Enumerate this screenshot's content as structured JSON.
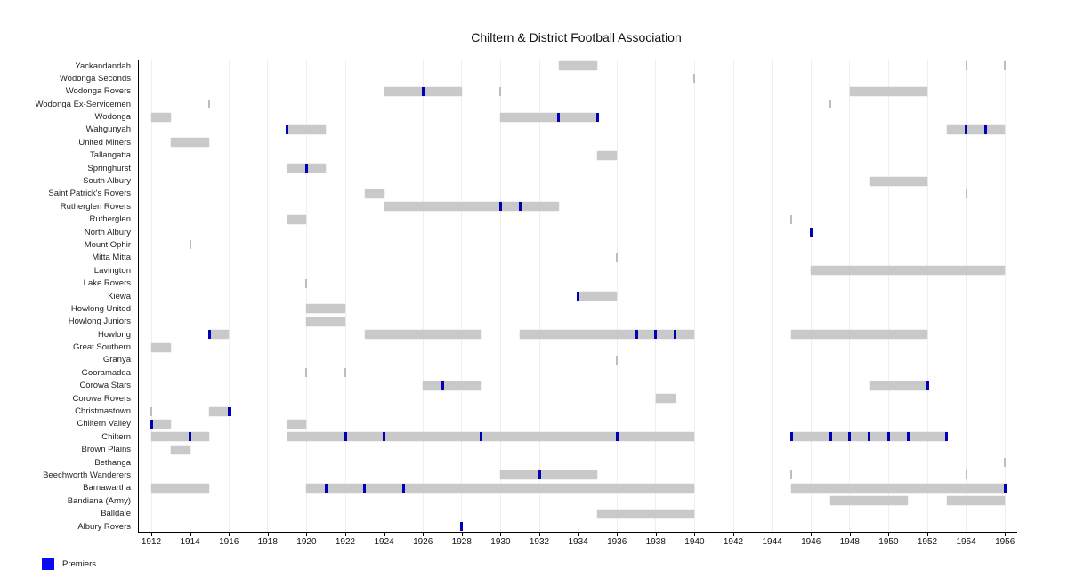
{
  "chart_data": {
    "type": "bar",
    "variant": "horizontal-timeline-gantt",
    "title": "Chiltern & District Football Association",
    "xlabel": "",
    "ylabel": "",
    "x_axis": {
      "min": 1912,
      "max": 1956,
      "tick_step": 2,
      "tick_labels": [
        "1912",
        "1914",
        "1916",
        "1918",
        "1920",
        "1922",
        "1924",
        "1926",
        "1928",
        "1930",
        "1932",
        "1934",
        "1936",
        "1938",
        "1940",
        "1942",
        "1944",
        "1946",
        "1948",
        "1950",
        "1952",
        "1954",
        "1956"
      ]
    },
    "grid": true,
    "legend": {
      "label": "Premiers",
      "position": "bottom-left"
    },
    "colors": {
      "bar": "#c9c9c9",
      "short_stint_tick": "#bdbdbd",
      "premier": "#0000b4",
      "legend_swatch": "#0a0af5",
      "grid": "#efefef",
      "axis": "#000000"
    },
    "clubs": [
      {
        "name": "Yackandandah",
        "bars": [
          [
            1933,
            1935
          ]
        ],
        "premiers": [],
        "ticks": [
          1954,
          1956
        ]
      },
      {
        "name": "Wodonga Seconds",
        "bars": [],
        "premiers": [],
        "ticks": [
          1940
        ]
      },
      {
        "name": "Wodonga Rovers",
        "bars": [
          [
            1924,
            1928
          ],
          [
            1948,
            1952
          ]
        ],
        "premiers": [
          1926
        ],
        "ticks": [
          1930
        ]
      },
      {
        "name": "Wodonga Ex-Servicemen",
        "bars": [],
        "premiers": [],
        "ticks": [
          1915,
          1947
        ]
      },
      {
        "name": "Wodonga",
        "bars": [
          [
            1912,
            1913
          ],
          [
            1930,
            1935
          ]
        ],
        "premiers": [
          1933,
          1935
        ],
        "ticks": []
      },
      {
        "name": "Wahgunyah",
        "bars": [
          [
            1919,
            1921
          ],
          [
            1953,
            1956
          ]
        ],
        "premiers": [
          1919,
          1954,
          1955
        ],
        "ticks": []
      },
      {
        "name": "United Miners",
        "bars": [
          [
            1913,
            1915
          ]
        ],
        "premiers": [],
        "ticks": []
      },
      {
        "name": "Tallangatta",
        "bars": [
          [
            1935,
            1936
          ]
        ],
        "premiers": [],
        "ticks": []
      },
      {
        "name": "Springhurst",
        "bars": [
          [
            1919,
            1921
          ]
        ],
        "premiers": [
          1920
        ],
        "ticks": []
      },
      {
        "name": "South Albury",
        "bars": [
          [
            1949,
            1952
          ]
        ],
        "premiers": [],
        "ticks": []
      },
      {
        "name": "Saint Patrick's Rovers",
        "bars": [
          [
            1923,
            1924
          ]
        ],
        "premiers": [],
        "ticks": [
          1954
        ]
      },
      {
        "name": "Rutherglen Rovers",
        "bars": [
          [
            1924,
            1933
          ]
        ],
        "premiers": [
          1930,
          1931
        ],
        "ticks": []
      },
      {
        "name": "Rutherglen",
        "bars": [
          [
            1919,
            1920
          ]
        ],
        "premiers": [],
        "ticks": [
          1945
        ]
      },
      {
        "name": "North Albury",
        "bars": [],
        "premiers": [
          1946
        ],
        "ticks": []
      },
      {
        "name": "Mount Ophir",
        "bars": [],
        "premiers": [],
        "ticks": [
          1914
        ]
      },
      {
        "name": "Mitta Mitta",
        "bars": [],
        "premiers": [],
        "ticks": [
          1936
        ]
      },
      {
        "name": "Lavington",
        "bars": [
          [
            1946,
            1956
          ]
        ],
        "premiers": [],
        "ticks": []
      },
      {
        "name": "Lake Rovers",
        "bars": [],
        "premiers": [],
        "ticks": [
          1920
        ]
      },
      {
        "name": "Kiewa",
        "bars": [
          [
            1934,
            1936
          ]
        ],
        "premiers": [
          1934
        ],
        "ticks": []
      },
      {
        "name": "Howlong United",
        "bars": [
          [
            1920,
            1922
          ]
        ],
        "premiers": [],
        "ticks": []
      },
      {
        "name": "Howlong Juniors",
        "bars": [
          [
            1920,
            1922
          ]
        ],
        "premiers": [],
        "ticks": []
      },
      {
        "name": "Howlong",
        "bars": [
          [
            1915,
            1916
          ],
          [
            1923,
            1929
          ],
          [
            1931,
            1940
          ],
          [
            1945,
            1952
          ]
        ],
        "premiers": [
          1915,
          1937,
          1938,
          1939
        ],
        "ticks": []
      },
      {
        "name": "Great Southern",
        "bars": [
          [
            1912,
            1913
          ]
        ],
        "premiers": [],
        "ticks": []
      },
      {
        "name": "Granya",
        "bars": [],
        "premiers": [],
        "ticks": [
          1936
        ]
      },
      {
        "name": "Gooramadda",
        "bars": [],
        "premiers": [],
        "ticks": [
          1920,
          1922
        ]
      },
      {
        "name": "Corowa Stars",
        "bars": [
          [
            1926,
            1929
          ],
          [
            1949,
            1952
          ]
        ],
        "premiers": [
          1927,
          1952
        ],
        "ticks": []
      },
      {
        "name": "Corowa Rovers",
        "bars": [
          [
            1938,
            1939
          ]
        ],
        "premiers": [],
        "ticks": []
      },
      {
        "name": "Christmastown",
        "bars": [
          [
            1915,
            1916
          ]
        ],
        "premiers": [
          1916
        ],
        "ticks": [
          1912
        ]
      },
      {
        "name": "Chiltern Valley",
        "bars": [
          [
            1912,
            1913
          ],
          [
            1919,
            1920
          ]
        ],
        "premiers": [
          1912
        ],
        "ticks": []
      },
      {
        "name": "Chiltern",
        "bars": [
          [
            1912,
            1915
          ],
          [
            1919,
            1940
          ],
          [
            1945,
            1953
          ]
        ],
        "premiers": [
          1914,
          1922,
          1924,
          1929,
          1936,
          1945,
          1947,
          1948,
          1949,
          1950,
          1951,
          1953
        ],
        "ticks": []
      },
      {
        "name": "Brown Plains",
        "bars": [
          [
            1913,
            1914
          ]
        ],
        "premiers": [],
        "ticks": []
      },
      {
        "name": "Bethanga",
        "bars": [],
        "premiers": [],
        "ticks": [
          1956
        ]
      },
      {
        "name": "Beechworth Wanderers",
        "bars": [
          [
            1930,
            1935
          ]
        ],
        "premiers": [
          1932
        ],
        "ticks": [
          1945,
          1954
        ]
      },
      {
        "name": "Barnawartha",
        "bars": [
          [
            1912,
            1915
          ],
          [
            1920,
            1940
          ],
          [
            1945,
            1956
          ]
        ],
        "premiers": [
          1921,
          1923,
          1925,
          1956
        ],
        "ticks": []
      },
      {
        "name": "Bandiana (Army)",
        "bars": [
          [
            1947,
            1951
          ],
          [
            1953,
            1956
          ]
        ],
        "premiers": [],
        "ticks": []
      },
      {
        "name": "Balldale",
        "bars": [
          [
            1935,
            1940
          ]
        ],
        "premiers": [],
        "ticks": []
      },
      {
        "name": "Albury Rovers",
        "bars": [],
        "premiers": [
          1928
        ],
        "ticks": []
      }
    ]
  }
}
